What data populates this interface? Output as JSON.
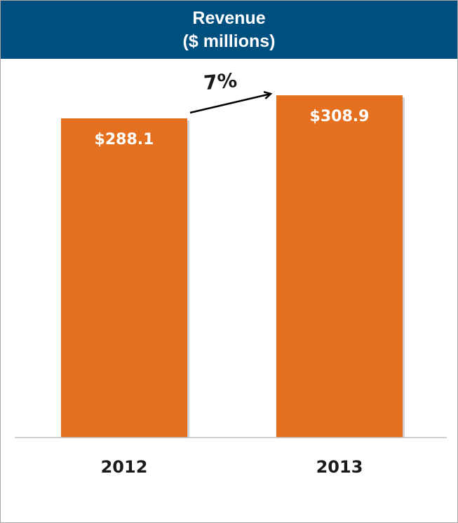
{
  "chart_data": {
    "type": "bar",
    "title": "Revenue",
    "subtitle": "($ millions)",
    "categories": [
      "2012",
      "2013"
    ],
    "values": [
      288.1,
      308.9
    ],
    "data_labels": [
      "$288.1",
      "$308.9"
    ],
    "annotation": "7%",
    "grid": false,
    "legend": "none"
  },
  "colors": {
    "header_bg": "#00507f",
    "bar": "#e5701f",
    "bar_label": "#ffffff",
    "text": "#1a1a1a",
    "axis": "#bfbfbf"
  }
}
